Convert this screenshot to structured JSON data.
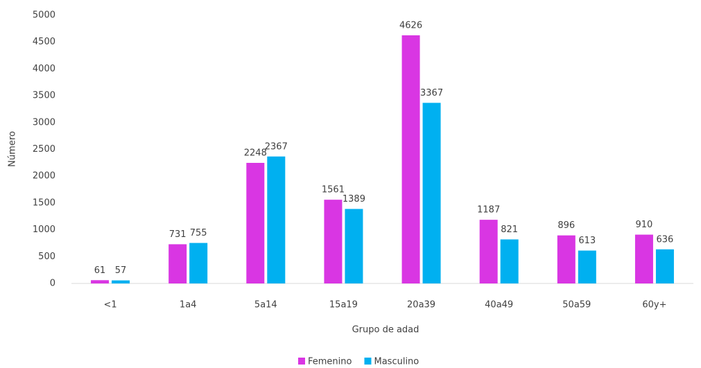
{
  "chart_data": {
    "type": "bar",
    "x_label": "Grupo de adad",
    "y_label": "Número",
    "categories": [
      "<1",
      "1a4",
      "5a14",
      "15a19",
      "20a39",
      "40a49",
      "50a59",
      "60y+"
    ],
    "series": [
      {
        "name": "Femenino",
        "color": "#d936e3",
        "values": [
          61,
          731,
          2248,
          1561,
          4626,
          1187,
          896,
          910
        ]
      },
      {
        "name": "Masculino",
        "color": "#00b0f0",
        "values": [
          57,
          755,
          2367,
          1389,
          3367,
          821,
          613,
          636
        ]
      }
    ],
    "ylim": [
      0,
      5000
    ],
    "yticks": [
      0,
      500,
      1000,
      1500,
      2000,
      2500,
      3000,
      3500,
      4000,
      4500,
      5000
    ],
    "grid": false,
    "legend": "bottom"
  }
}
